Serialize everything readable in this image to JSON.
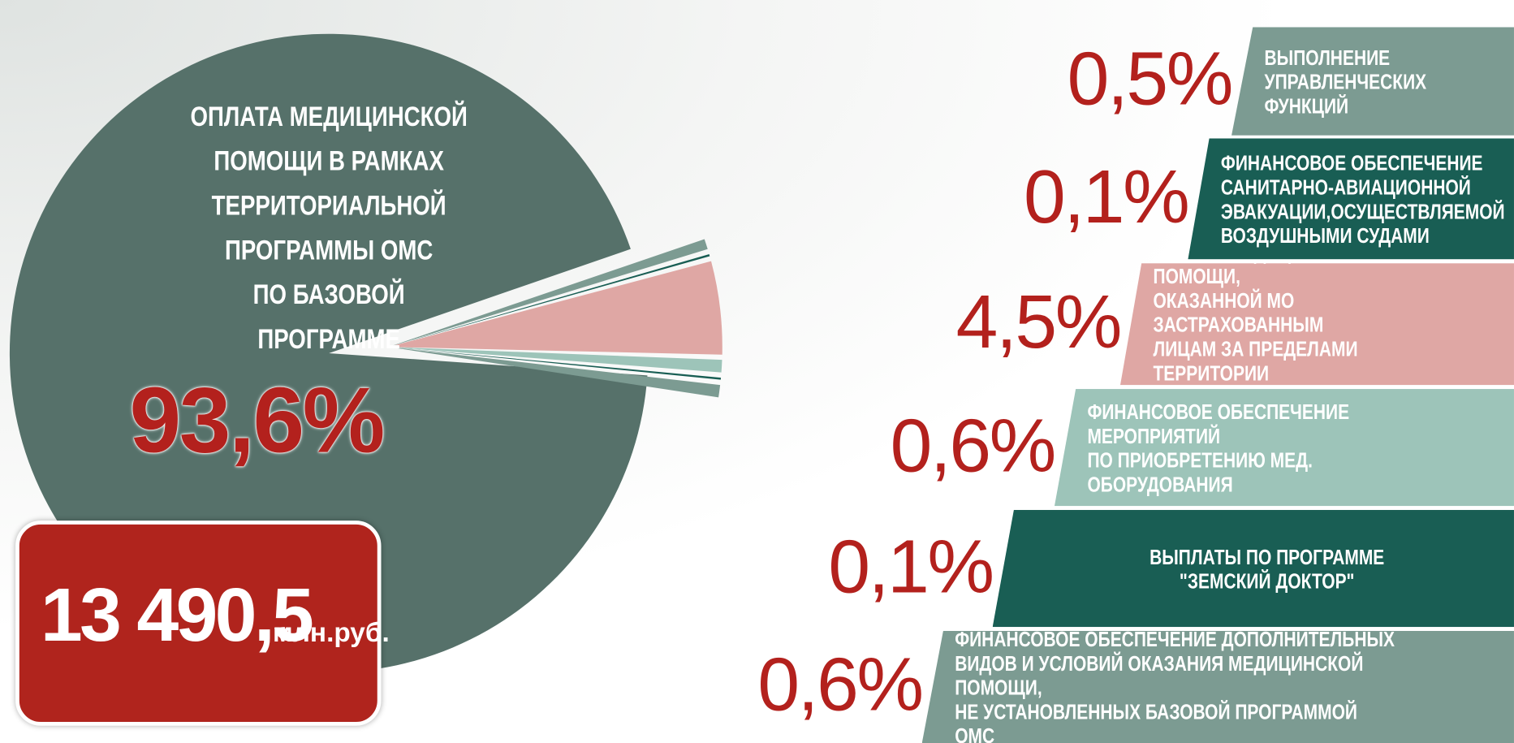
{
  "chart_data": {
    "type": "pie",
    "categories": [
      "ОПЛАТА МЕДИЦИНСКОЙ\nПОМОЩИ В РАМКАХ\nТЕРРИТОРИАЛЬНОЙ\nПРОГРАММЫ ОМС\nПО БАЗОВОЙ ПРОГРАММЕ",
      "ВЫПОЛНЕНИЕ УПРАВЛЕНЧЕСКИХ\nФУНКЦИЙ",
      "ФИНАНСОВОЕ ОБЕСПЕЧЕНИЕ\nСАНИТАРНО-АВИАЦИОННОЙ\nЭВАКУАЦИИ,ОСУЩЕСТВЛЯЕМОЙ\nВОЗДУШНЫМИ СУДАМИ",
      "ОПЛАТА МЕДИЦИНСКОЙ ПОМОЩИ,\nОКАЗАННОЙ МО ЗАСТРАХОВАННЫМ\nЛИЦАМ ЗА ПРЕДЕЛАМИ ТЕРРИТОРИИ\nСУБЪЕКТА РФ",
      "ФИНАНСОВОЕ ОБЕСПЕЧЕНИЕ МЕРОПРИЯТИЙ\nПО ПРИОБРЕТЕНИЮ МЕД. ОБОРУДОВАНИЯ",
      "ВЫПЛАТЫ ПО ПРОГРАММЕ\n\"ЗЕМСКИЙ ДОКТОР\"",
      "ФИНАНСОВОЕ ОБЕСПЕЧЕНИЕ ДОПОЛНИТЕЛЬНЫХ\nВИДОВ И УСЛОВИЙ ОКАЗАНИЯ МЕДИЦИНСКОЙ ПОМОЩИ,\nНЕ УСТАНОВЛЕННЫХ БАЗОВОЙ ПРОГРАММОЙ ОМС"
    ],
    "values": [
      93.6,
      0.5,
      0.1,
      4.5,
      0.6,
      0.1,
      0.6
    ],
    "value_labels": [
      "93,6%",
      "0,5%",
      "0,1%",
      "4,5%",
      "0,6%",
      "0,1%",
      "0,6%"
    ],
    "colors": [
      "#56716a",
      "#7c9b92",
      "#195e54",
      "#dfa7a4",
      "#9dc4b9",
      "#195e54",
      "#7c9b92"
    ],
    "total_label": "13 490,5",
    "total_unit": "млн.руб."
  }
}
